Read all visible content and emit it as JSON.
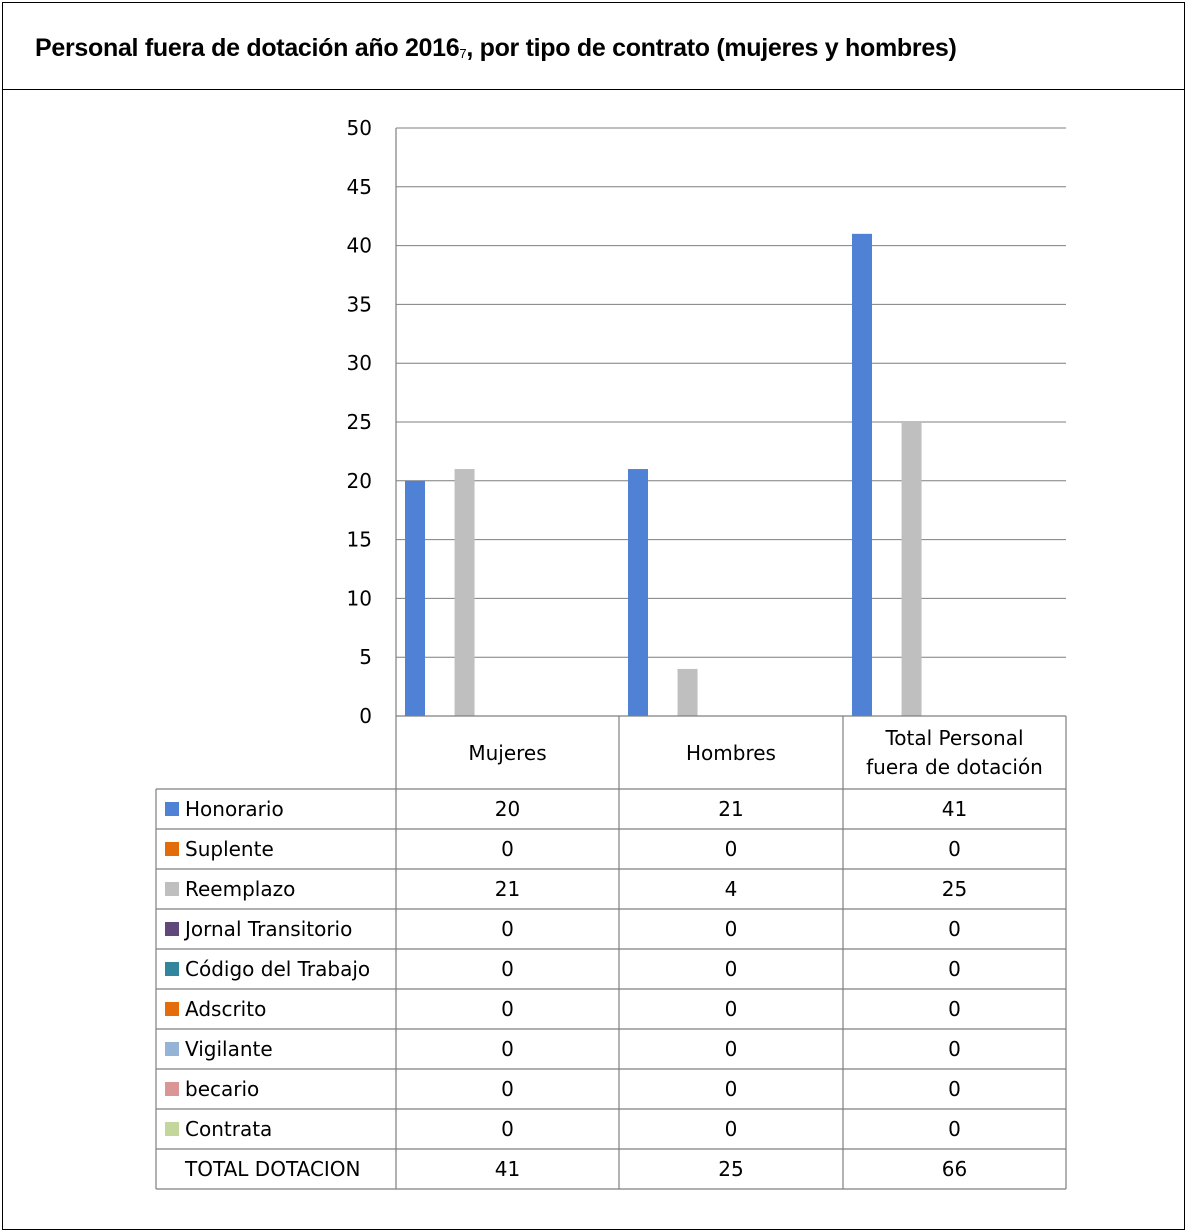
{
  "title": {
    "main": "Personal fuera de dotación año 2016",
    "footnote": "7",
    "rest": ", por tipo de contrato (mujeres y hombres)"
  },
  "chart_data": {
    "type": "bar",
    "categories": [
      "Mujeres",
      "Hombres",
      "Total Personal fuera de dotación"
    ],
    "ylim": [
      0,
      50
    ],
    "yticks": [
      0,
      5,
      10,
      15,
      20,
      25,
      30,
      35,
      40,
      45,
      50
    ],
    "grid": true,
    "legend": "table-bottom",
    "series": [
      {
        "name": "Honorario",
        "color": "#4F81D4",
        "values": [
          20,
          21,
          41
        ]
      },
      {
        "name": "Suplente",
        "color": "#E36C0A",
        "values": [
          0,
          0,
          0
        ]
      },
      {
        "name": "Reemplazo",
        "color": "#BFBFBF",
        "values": [
          21,
          4,
          25
        ]
      },
      {
        "name": "Jornal Transitorio",
        "color": "#60497A",
        "values": [
          0,
          0,
          0
        ]
      },
      {
        "name": "Código del Trabajo",
        "color": "#31859C",
        "values": [
          0,
          0,
          0
        ]
      },
      {
        "name": "Adscrito",
        "color": "#E46C0A",
        "values": [
          0,
          0,
          0
        ]
      },
      {
        "name": "Vigilante",
        "color": "#95B3D7",
        "values": [
          0,
          0,
          0
        ]
      },
      {
        "name": "becario",
        "color": "#D99694",
        "values": [
          0,
          0,
          0
        ]
      },
      {
        "name": "Contrata",
        "color": "#C3D69B",
        "values": [
          0,
          0,
          0
        ]
      }
    ],
    "total_row": {
      "name": "TOTAL DOTACION",
      "values": [
        41,
        25,
        66
      ]
    }
  }
}
